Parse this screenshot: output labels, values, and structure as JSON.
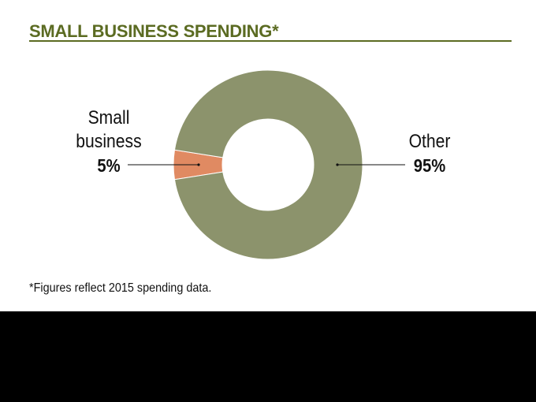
{
  "chart_data": {
    "type": "pie",
    "style": "donut",
    "title": "SMALL BUSINESS SPENDING*",
    "slices": [
      {
        "label_lines": [
          "Small",
          "business"
        ],
        "value": 5,
        "value_label": "5%",
        "color": "#e08a62"
      },
      {
        "label_lines": [
          "Other"
        ],
        "value": 95,
        "value_label": "95%",
        "color": "#8c936c"
      }
    ],
    "footnote": "*Figures reflect 2015 spending data."
  },
  "colors": {
    "title": "#5b6b22",
    "background": "#ffffff",
    "bottom_band": "#000000"
  }
}
